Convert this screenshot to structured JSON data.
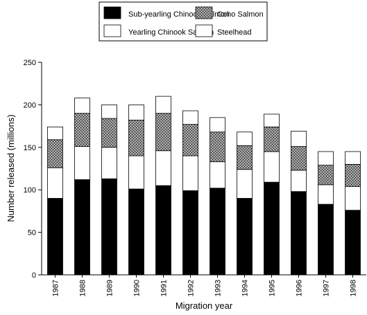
{
  "chart_data": {
    "type": "bar",
    "stacked": true,
    "title": "",
    "xlabel": "Migration year",
    "ylabel": "Number released (millions)",
    "ylim": [
      0,
      250
    ],
    "yticks": [
      0,
      50,
      100,
      150,
      200,
      250
    ],
    "grid": false,
    "legend_position": "top",
    "categories": [
      "1987",
      "1988",
      "1989",
      "1990",
      "1991",
      "1992",
      "1993",
      "1994",
      "1995",
      "1996",
      "1997",
      "1998"
    ],
    "series": [
      {
        "name": "Sub-yearling Chinook Salmon",
        "fill": "solid",
        "values": [
          90,
          112,
          113,
          101,
          105,
          99,
          102,
          90,
          109,
          98,
          83,
          76
        ]
      },
      {
        "name": "Yearling Chinook Salmon",
        "fill": "white",
        "values": [
          36,
          39,
          37,
          39,
          41,
          41,
          31,
          34,
          36,
          25,
          23,
          28
        ]
      },
      {
        "name": "Coho Salmon",
        "fill": "stipple",
        "values": [
          33,
          39,
          34,
          42,
          44,
          37,
          35,
          28,
          29,
          28,
          23,
          26
        ]
      },
      {
        "name": "Steelhead",
        "fill": "white",
        "values": [
          15,
          18,
          16,
          18,
          20,
          16,
          17,
          16,
          15,
          18,
          16,
          15
        ]
      }
    ],
    "legend": {
      "items": [
        {
          "label": "Sub-yearling Chinook Salmon",
          "fill": "solid"
        },
        {
          "label": "Coho Salmon",
          "fill": "stipple"
        },
        {
          "label": "Yearling Chinook Salmon",
          "fill": "white"
        },
        {
          "label": "Steelhead",
          "fill": "white"
        }
      ]
    },
    "colors": {
      "solid": "#000000",
      "white": "#ffffff",
      "stipple": "#6f6f6f",
      "stroke": "#000000"
    }
  }
}
